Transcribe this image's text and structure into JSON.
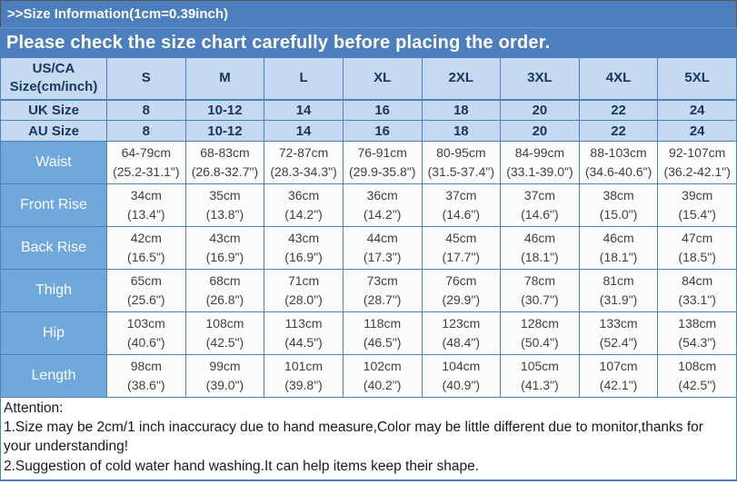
{
  "banner": {
    "title": ">>Size Information(1cm=0.39inch)",
    "subtitle": "Please check the size chart carefully before placing the order."
  },
  "table": {
    "columns": [
      "US/CA\nSize(cm/inch)",
      "S",
      "M",
      "L",
      "XL",
      "2XL",
      "3XL",
      "4XL",
      "5XL"
    ],
    "size_rows": [
      {
        "label": "UK Size",
        "values": [
          "8",
          "10-12",
          "14",
          "16",
          "18",
          "20",
          "22",
          "24"
        ]
      },
      {
        "label": "AU Size",
        "values": [
          "8",
          "10-12",
          "14",
          "16",
          "18",
          "20",
          "22",
          "24"
        ]
      }
    ],
    "measurement_rows": [
      {
        "label": "Waist",
        "values": [
          "64-79cm\n(25.2-31.1\")",
          "68-83cm\n(26.8-32.7\")",
          "72-87cm\n(28.3-34.3\")",
          "76-91cm\n(29.9-35.8\")",
          "80-95cm\n(31.5-37.4\")",
          "84-99cm\n(33.1-39.0\")",
          "88-103cm\n(34.6-40.6\")",
          "92-107cm\n(36.2-42.1\")"
        ]
      },
      {
        "label": "Front Rise",
        "values": [
          "34cm\n(13.4\")",
          "35cm\n(13.8\")",
          "36cm\n(14.2\")",
          "36cm\n(14.2\")",
          "37cm\n(14.6\")",
          "37cm\n(14.6\")",
          "38cm\n(15.0\")",
          "39cm\n(15.4\")"
        ]
      },
      {
        "label": "Back Rise",
        "values": [
          "42cm\n(16.5\")",
          "43cm\n(16.9\")",
          "43cm\n(16.9\")",
          "44cm\n(17.3\")",
          "45cm\n(17.7\")",
          "46cm\n(18.1\")",
          "46cm\n(18.1\")",
          "47cm\n(18.5\")"
        ]
      },
      {
        "label": "Thigh",
        "values": [
          "65cm\n(25.6\")",
          "68cm\n(26.8\")",
          "71cm\n(28.0\")",
          "73cm\n(28.7\")",
          "76cm\n(29.9\")",
          "78cm\n(30.7\")",
          "81cm\n(31.9\")",
          "84cm\n(33.1\")"
        ]
      },
      {
        "label": "Hip",
        "values": [
          "103cm\n(40.6\")",
          "108cm\n(42.5\")",
          "113cm\n(44.5\")",
          "118cm\n(46.5\")",
          "123cm\n(48.4\")",
          "128cm\n(50.4\")",
          "133cm\n(52.4\")",
          "138cm\n(54.3\")"
        ]
      },
      {
        "label": "Length",
        "values": [
          "98cm\n(38.6\")",
          "99cm\n(39.0\")",
          "101cm\n(39.8\")",
          "102cm\n(40.2\")",
          "104cm\n(40.9\")",
          "105cm\n(41.3\")",
          "107cm\n(42.1\")",
          "108cm\n(42.5\")"
        ]
      }
    ]
  },
  "attention": {
    "heading": "Attention:",
    "notes": [
      "1.Size may be 2cm/1 inch inaccuracy due to hand measure,Color may be little different due to monitor,thanks for your understanding!",
      "2.Suggestion of cold water hand washing.It can help items keep their shape."
    ]
  },
  "colors": {
    "banner_bg": "#4d7ebd",
    "header_cell_bg": "#c5d9f1",
    "label_cell_bg": "#6fa8dc",
    "cell_border": "#4f81bd"
  }
}
